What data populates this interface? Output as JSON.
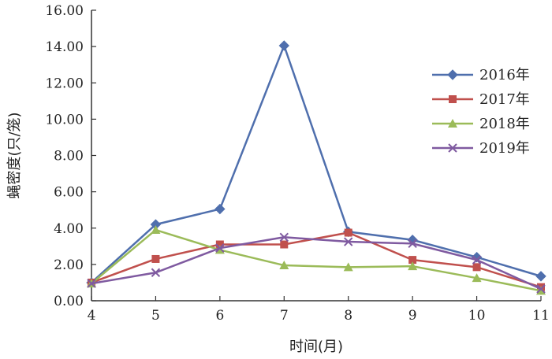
{
  "chart_data": {
    "type": "line",
    "title": "",
    "xlabel": "时间(月)",
    "ylabel": "蝇密度(只/笼)",
    "x": [
      4,
      5,
      6,
      7,
      8,
      9,
      10,
      11
    ],
    "x_tick_labels": [
      "4",
      "5",
      "6",
      "7",
      "8",
      "9",
      "10",
      "11"
    ],
    "ylim": [
      0,
      16
    ],
    "y_ticks": [
      0,
      2,
      4,
      6,
      8,
      10,
      12,
      14,
      16
    ],
    "y_tick_labels": [
      "0.00",
      "2.00",
      "4.00",
      "6.00",
      "8.00",
      "10.00",
      "12.00",
      "14.00",
      "16.00"
    ],
    "grid": false,
    "legend_position": "right",
    "series": [
      {
        "name": "2016年",
        "color": "#4f6fad",
        "marker": "diamond",
        "values": [
          1.0,
          4.2,
          5.05,
          14.05,
          3.8,
          3.35,
          2.4,
          1.35
        ]
      },
      {
        "name": "2017年",
        "color": "#c0504d",
        "marker": "square",
        "values": [
          1.0,
          2.3,
          3.1,
          3.1,
          3.75,
          2.25,
          1.85,
          0.75
        ]
      },
      {
        "name": "2018年",
        "color": "#9bbb59",
        "marker": "triangle",
        "values": [
          0.95,
          3.9,
          2.8,
          1.95,
          1.85,
          1.9,
          1.25,
          0.55
        ]
      },
      {
        "name": "2019年",
        "color": "#7f5aa0",
        "marker": "x",
        "values": [
          0.95,
          1.55,
          2.9,
          3.5,
          3.25,
          3.15,
          2.25,
          0.65
        ]
      }
    ]
  }
}
